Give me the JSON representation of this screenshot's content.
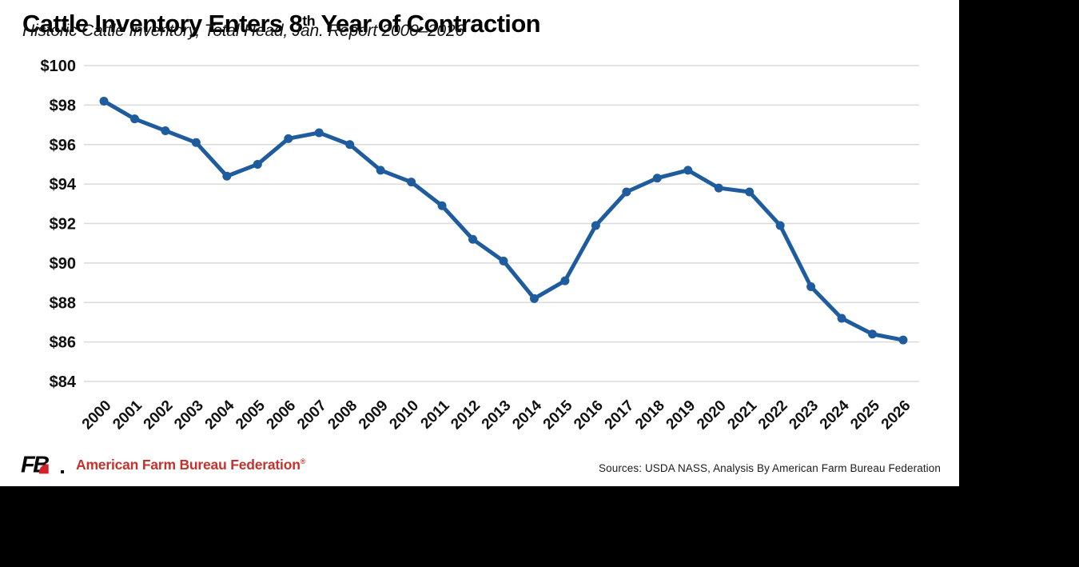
{
  "header": {
    "title_pre": "Cattle Inventory Enters 8",
    "title_sup": "th",
    "title_post": " Year of Contraction",
    "subtitle": "Historic Cattle Inventory, Total Head, Jan. Report 2000–2026"
  },
  "chart_data": {
    "type": "line",
    "title": "Cattle Inventory Enters 8th Year of Contraction",
    "subtitle": "Historic Cattle Inventory, Total Head, Jan. Report 2000–2026",
    "x": [
      2000,
      2001,
      2002,
      2003,
      2004,
      2005,
      2006,
      2007,
      2008,
      2009,
      2010,
      2011,
      2012,
      2013,
      2014,
      2015,
      2016,
      2017,
      2018,
      2019,
      2020,
      2021,
      2022,
      2023,
      2024,
      2025,
      2026
    ],
    "values": [
      98.2,
      97.3,
      96.7,
      96.1,
      94.4,
      95.0,
      96.3,
      96.6,
      96.0,
      94.7,
      94.1,
      92.9,
      91.2,
      90.1,
      88.2,
      89.1,
      91.9,
      93.6,
      94.3,
      94.7,
      93.8,
      93.6,
      91.9,
      88.8,
      87.2,
      86.4,
      86.1
    ],
    "ylim": [
      84,
      100
    ],
    "y_ticks": [
      84,
      86,
      88,
      90,
      92,
      94,
      96,
      98,
      100
    ],
    "y_tick_prefix": "$",
    "x_tick_rotation": -45,
    "grid": "horizontal",
    "legend_position": "none",
    "line_color": "#1F5C9E",
    "marker": "circle"
  },
  "footer": {
    "logo_text": "FB",
    "brand": "American Farm Bureau Federation",
    "brand_mark": "®",
    "sources": "Sources: USDA NASS, Analysis By American Farm Bureau Federation"
  },
  "colors": {
    "line_blue": "#1F5C9E",
    "brand_red": "#C5322B",
    "logo_red": "#D2232A",
    "grid_gray": "#DADADA",
    "frame_black": "#000000",
    "axis_text": "#111111"
  }
}
